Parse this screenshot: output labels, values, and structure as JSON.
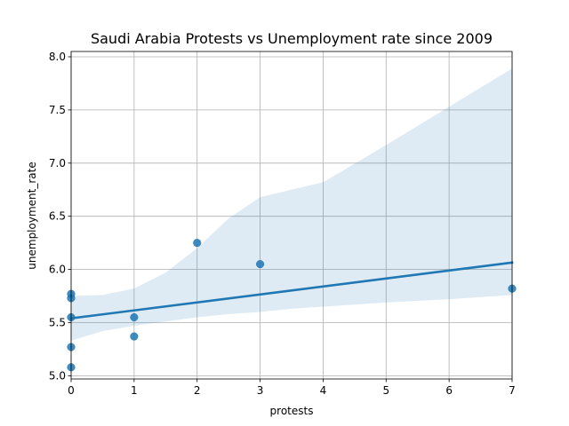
{
  "chart_data": {
    "type": "scatter",
    "title": "Saudi Arabia Protests vs Unemployment rate since 2009",
    "xlabel": "protests",
    "ylabel": "unemployment_rate",
    "xlim": [
      0,
      7
    ],
    "ylim": [
      4.97,
      8.05
    ],
    "xticks": [
      0,
      1,
      2,
      3,
      4,
      5,
      6,
      7
    ],
    "yticks": [
      5.0,
      5.5,
      6.0,
      6.5,
      7.0,
      7.5,
      8.0
    ],
    "grid": true,
    "points": [
      {
        "x": 0,
        "y": 5.08
      },
      {
        "x": 0,
        "y": 5.27
      },
      {
        "x": 0,
        "y": 5.55
      },
      {
        "x": 0,
        "y": 5.73
      },
      {
        "x": 0,
        "y": 5.77
      },
      {
        "x": 1,
        "y": 5.37
      },
      {
        "x": 1,
        "y": 5.55
      },
      {
        "x": 2,
        "y": 6.25
      },
      {
        "x": 3,
        "y": 6.05
      },
      {
        "x": 7,
        "y": 5.82
      }
    ],
    "regression": {
      "intercept": 5.54,
      "slope": 0.075
    },
    "confidence_band": [
      {
        "x": 0,
        "low": 5.33,
        "high": 5.75
      },
      {
        "x": 0.5,
        "low": 5.42,
        "high": 5.76
      },
      {
        "x": 1,
        "low": 5.47,
        "high": 5.82
      },
      {
        "x": 1.5,
        "low": 5.51,
        "high": 5.97
      },
      {
        "x": 2,
        "low": 5.55,
        "high": 6.2
      },
      {
        "x": 2.5,
        "low": 5.58,
        "high": 6.48
      },
      {
        "x": 3,
        "low": 5.6,
        "high": 6.68
      },
      {
        "x": 3.5,
        "low": 5.63,
        "high": 6.75
      },
      {
        "x": 4,
        "low": 5.65,
        "high": 6.82
      },
      {
        "x": 5,
        "low": 5.69,
        "high": 7.17
      },
      {
        "x": 6,
        "low": 5.72,
        "high": 7.53
      },
      {
        "x": 7,
        "low": 5.76,
        "high": 7.89
      }
    ],
    "colors": {
      "points": "#1f77b4",
      "line": "#1f77b4",
      "band": "#1f77b4"
    }
  }
}
